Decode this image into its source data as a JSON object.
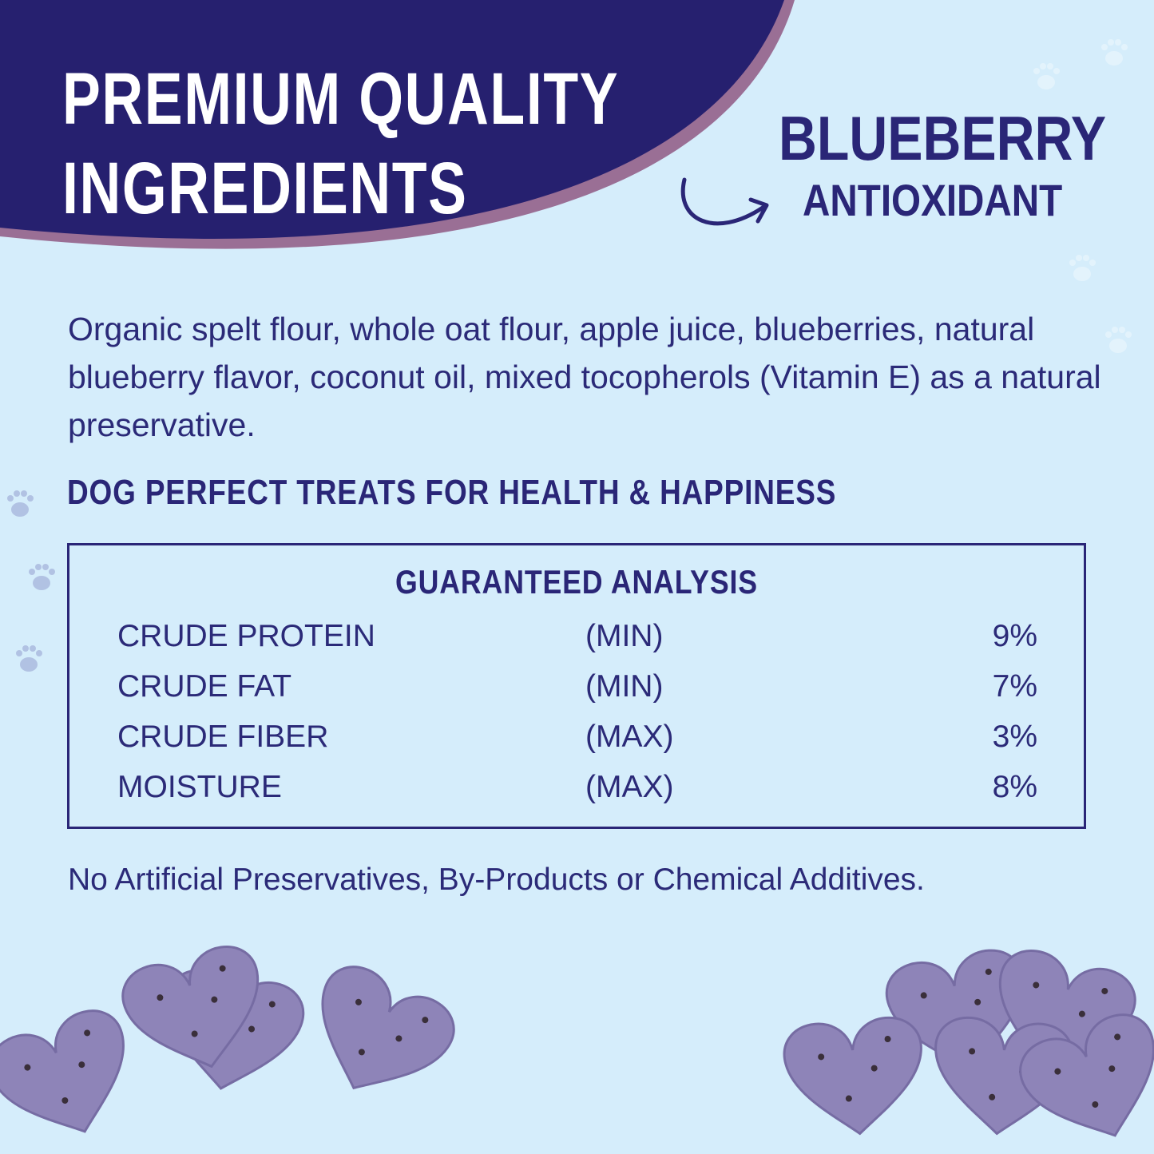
{
  "header": {
    "title_line1": "PREMIUM QUALITY",
    "title_line2": "INGREDIENTS"
  },
  "callout": {
    "line1": "BLUEBERRY",
    "line2": "ANTIOXIDANT",
    "icon": "curved-arrow-icon"
  },
  "ingredients": "Organic spelt flour, whole oat flour, apple juice, blueberries, natural blueberry flavor, coconut oil, mixed tocopherols (Vitamin E) as a natural preservative.",
  "subheading": "DOG PERFECT TREATS FOR HEALTH & HAPPINESS",
  "analysis": {
    "title": "GUARANTEED ANALYSIS",
    "rows": [
      {
        "name": "CRUDE PROTEIN",
        "qualifier": "(MIN)",
        "value": "9%"
      },
      {
        "name": "CRUDE FAT",
        "qualifier": "(MIN)",
        "value": "7%"
      },
      {
        "name": "CRUDE FIBER",
        "qualifier": "(MAX)",
        "value": "3%"
      },
      {
        "name": "MOISTURE",
        "qualifier": "(MAX)",
        "value": "8%"
      }
    ]
  },
  "footer": "No Artificial Preservatives, By-Products or Chemical Additives.",
  "colors": {
    "background": "#d5edfb",
    "navy": "#26206f",
    "accent_border": "#9a6f95",
    "treat": "#8e84b8"
  }
}
